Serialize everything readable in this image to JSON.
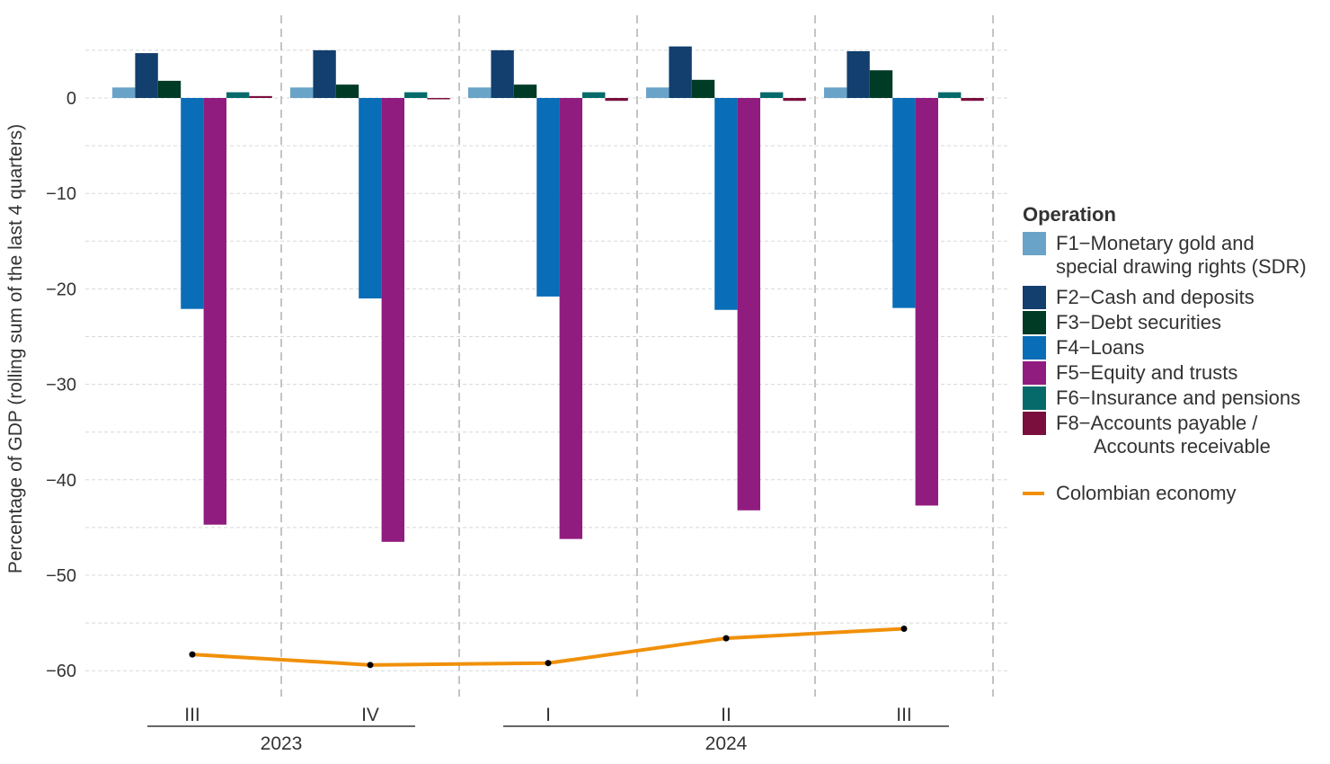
{
  "chart_data": {
    "type": "bar",
    "ylabel": "Percentage of GDP (rolling sum of the last 4 quarters)",
    "ylim": [
      -62,
      6
    ],
    "yticks": [
      0,
      -10,
      -20,
      -30,
      -40,
      -50,
      -60
    ],
    "ytick_labels": [
      "0",
      "−10",
      "−20",
      "−30",
      "−40",
      "−50",
      "−60"
    ],
    "grid": true,
    "categories": [
      "III",
      "IV",
      "I",
      "II",
      "III"
    ],
    "year_groups": [
      {
        "label": "2023",
        "categories": [
          0,
          1
        ]
      },
      {
        "label": "2024",
        "categories": [
          2,
          3,
          4
        ]
      }
    ],
    "legend_title": "Operation",
    "legend_position": "right",
    "series": [
      {
        "name": "F1−Monetary gold and special drawing rights (SDR)",
        "color": "#6aa3c8",
        "values": [
          1.1,
          1.1,
          1.1,
          1.1,
          1.1
        ]
      },
      {
        "name": "F2−Cash and deposits",
        "color": "#123f6e",
        "values": [
          4.7,
          5.0,
          5.0,
          5.4,
          4.9
        ]
      },
      {
        "name": "F3−Debt securities",
        "color": "#003b26",
        "values": [
          1.8,
          1.4,
          1.4,
          1.9,
          2.9
        ]
      },
      {
        "name": "F4−Loans",
        "color": "#0a6db7",
        "values": [
          -22.1,
          -21.0,
          -20.8,
          -22.2,
          -22.0
        ]
      },
      {
        "name": "F5−Equity and trusts",
        "color": "#911c80",
        "values": [
          -44.7,
          -46.5,
          -46.2,
          -43.2,
          -42.7
        ]
      },
      {
        "name": "F6−Insurance and pensions",
        "color": "#066a6a",
        "values": [
          0.6,
          0.6,
          0.6,
          0.6,
          0.6
        ]
      },
      {
        "name": "F8−Accounts payable / Accounts receivable",
        "color": "#7a0f3e",
        "values": [
          0.2,
          -0.1,
          -0.3,
          -0.3,
          -0.3
        ]
      }
    ],
    "line": {
      "name": "Colombian economy",
      "color": "#f0900a",
      "values": [
        -58.3,
        -59.4,
        -59.2,
        -56.6,
        -55.6
      ]
    }
  },
  "legend": {
    "title": "Operation",
    "items": [
      {
        "label": "F1−Monetary gold and",
        "label2": "special drawing rights (SDR)"
      },
      {
        "label": "F2−Cash and deposits"
      },
      {
        "label": "F3−Debt securities"
      },
      {
        "label": "F4−Loans"
      },
      {
        "label": "F5−Equity and trusts"
      },
      {
        "label": "F6−Insurance and pensions"
      },
      {
        "label": "F8−Accounts payable /",
        "label2": "Accounts receivable"
      }
    ],
    "line_label": "Colombian economy"
  }
}
